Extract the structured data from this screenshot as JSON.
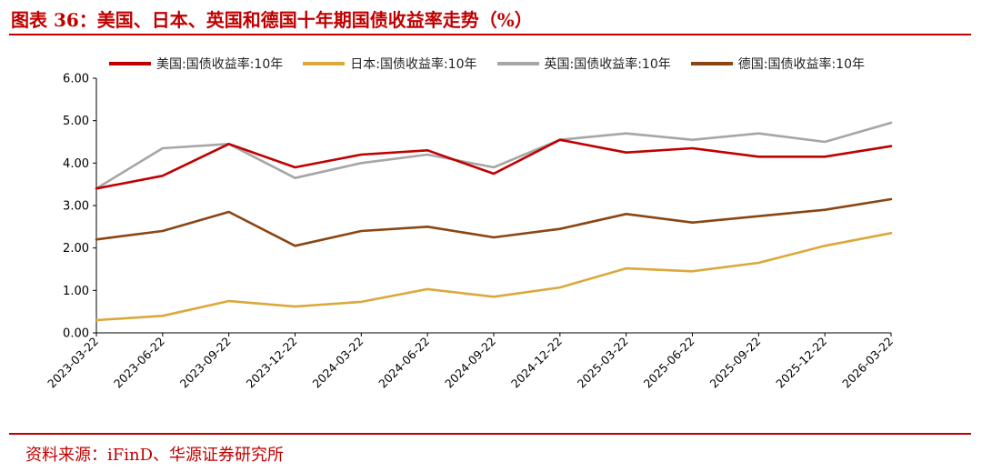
{
  "title": "图表 36：美国、日本、英国和德国十年期国债收益率走势（%）",
  "source": "资料来源：iFinD、华源证券研究所",
  "chart_data": {
    "type": "line",
    "xlabel": "",
    "ylabel": "",
    "ylim": [
      0,
      6
    ],
    "yticks": [
      "0.00",
      "1.00",
      "2.00",
      "3.00",
      "4.00",
      "5.00",
      "6.00"
    ],
    "x": [
      "2023-03-22",
      "2023-06-22",
      "2023-09-22",
      "2023-12-22",
      "2024-03-22",
      "2024-06-22",
      "2024-09-22",
      "2024-12-22",
      "2025-03-22",
      "2025-06-22",
      "2025-09-22",
      "2025-12-22",
      "2026-03-22"
    ],
    "grid": false,
    "legend_position": "top",
    "series": [
      {
        "name": "美国:国债收益率:10年",
        "color": "#c00000",
        "values": [
          3.4,
          3.7,
          4.45,
          3.9,
          4.2,
          4.3,
          3.75,
          4.55,
          4.25,
          4.35,
          4.15,
          4.15,
          4.4
        ]
      },
      {
        "name": "日本:国债收益率:10年",
        "color": "#dba83b",
        "values": [
          0.3,
          0.4,
          0.75,
          0.62,
          0.73,
          1.03,
          0.85,
          1.07,
          1.52,
          1.45,
          1.65,
          2.05,
          2.35
        ]
      },
      {
        "name": "英国:国债收益率:10年",
        "color": "#a6a6a6",
        "values": [
          3.4,
          4.35,
          4.45,
          3.65,
          4.0,
          4.2,
          3.9,
          4.55,
          4.7,
          4.55,
          4.7,
          4.5,
          4.95
        ]
      },
      {
        "name": "德国:国债收益率:10年",
        "color": "#8b4513",
        "values": [
          2.2,
          2.4,
          2.85,
          2.05,
          2.4,
          2.5,
          2.25,
          2.45,
          2.8,
          2.6,
          2.75,
          2.9,
          3.15
        ]
      }
    ]
  }
}
